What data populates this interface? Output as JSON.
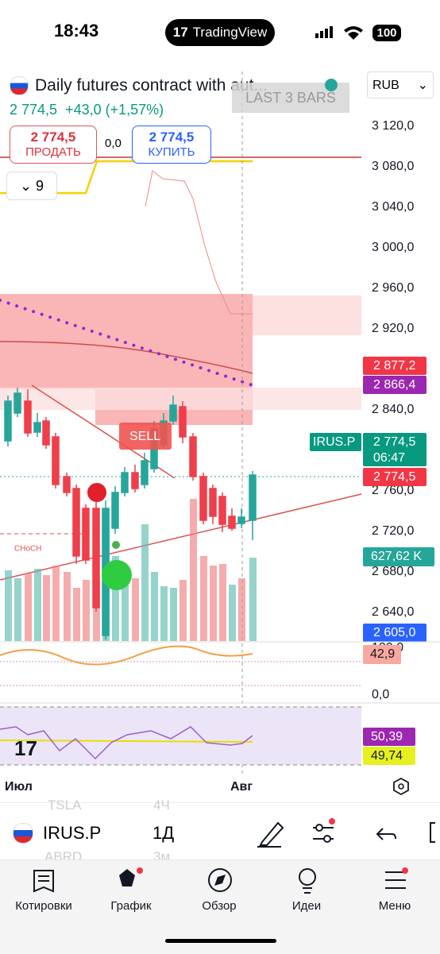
{
  "status_bar": {
    "time": "18:43",
    "app": "TradingView",
    "battery": "100"
  },
  "header": {
    "title": "Daily futures contract with aut...",
    "currency": "RUB",
    "price": "2 774,5",
    "change": "+43,0 (+1,57%)",
    "indicator_label": "LAST 3 BARS"
  },
  "trade": {
    "sell_price": "2 774,5",
    "sell_label": "ПРОДАТЬ",
    "spread": "0,0",
    "buy_price": "2 774,5",
    "buy_label": "КУПИТЬ",
    "indicators_count": "9"
  },
  "price_axis": [
    "3 120,0",
    "3 080,0",
    "3 040,0",
    "3 000,0",
    "2 960,0",
    "2 920,0",
    "2 840,0",
    "2 760,0",
    "2 720,0",
    "2 680,0",
    "2 640,0"
  ],
  "badges": {
    "level_1": "2 877,2",
    "level_2": "2 866,4",
    "symbol": "IRUS.P",
    "last": "2 774,5",
    "countdown": "06:47",
    "last_line": "2 774,5",
    "volume": "627,62 K",
    "low": "2 605,0"
  },
  "annotations": {
    "sell": "SELL",
    "choch": "CHoCH"
  },
  "oscillator": {
    "top": "100,0",
    "value": "42,9",
    "bottom": "0,0"
  },
  "rsi": {
    "value_1": "50,39",
    "value_2": "49,74"
  },
  "time_axis": [
    "Июл",
    "Авг"
  ],
  "toolbar": {
    "symbol": "IRUS.P",
    "interval": "1Д",
    "ghost_symbol_1": "TSLA",
    "ghost_interval_1": "4Ч",
    "ghost_symbol_2": "ABRD",
    "ghost_interval_2": "3м"
  },
  "nav": [
    "Котировки",
    "График",
    "Обзор",
    "Идеи",
    "Меню"
  ]
}
